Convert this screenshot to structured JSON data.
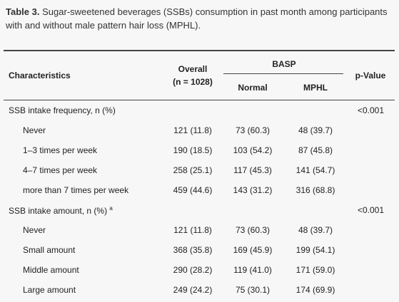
{
  "caption": {
    "label": "Table 3.",
    "text": "Sugar-sweetened beverages (SSBs) consumption in past month among participants with and without male pattern hair loss (MPHL)."
  },
  "table": {
    "header": {
      "characteristics": "Characteristics",
      "overall": "Overall",
      "overall_n": "(n = 1028)",
      "group": "BASP",
      "normal": "Normal",
      "mphl": "MPHL",
      "p_value": "p-Value"
    },
    "groups": [
      {
        "label": "SSB intake frequency, n (%)",
        "p_value": "<0.001",
        "rows": [
          [
            "Never",
            "121 (11.8)",
            "73 (60.3)",
            "48 (39.7)"
          ],
          [
            "1–3 times per week",
            "190 (18.5)",
            "103 (54.2)",
            "87 (45.8)"
          ],
          [
            "4–7 times per week",
            "258 (25.1)",
            "117 (45.3)",
            "141 (54.7)"
          ],
          [
            "more than 7 times per week",
            "459 (44.6)",
            "143 (31.2)",
            "316 (68.8)"
          ]
        ]
      },
      {
        "label": "SSB intake amount, n (%)",
        "footnote": "a",
        "p_value": "<0.001",
        "rows": [
          [
            "Never",
            "121 (11.8)",
            "73 (60.3)",
            "48 (39.7)"
          ],
          [
            "Small amount",
            "368 (35.8)",
            "169 (45.9)",
            "199 (54.1)"
          ],
          [
            "Middle amount",
            "290 (28.2)",
            "119 (41.0)",
            "171 (59.0)"
          ],
          [
            "Large amount",
            "249 (24.2)",
            "75 (30.1)",
            "174 (69.9)"
          ]
        ]
      }
    ]
  }
}
